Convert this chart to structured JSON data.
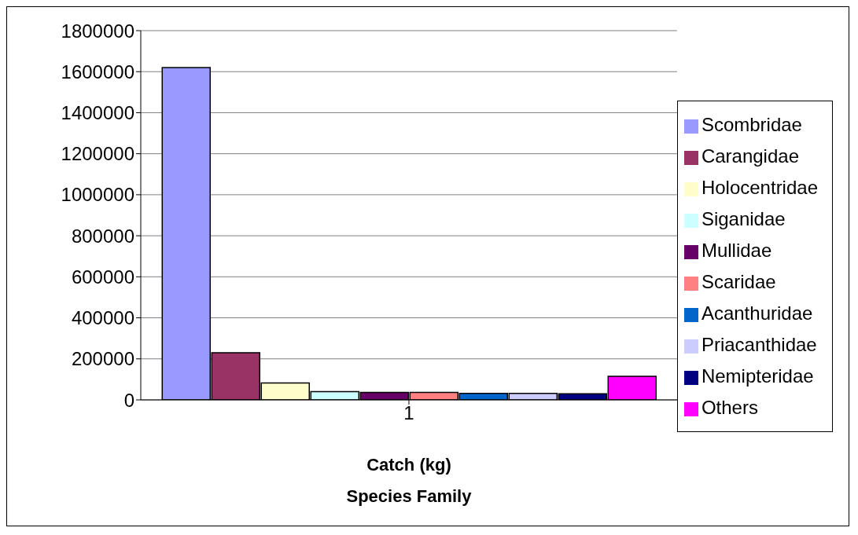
{
  "chart_data": {
    "type": "bar",
    "categories": [
      "1"
    ],
    "xlabel": "Catch (kg)\nSpecies Family",
    "series": [
      {
        "name": "Scombridae",
        "color": "#9999ff",
        "values": [
          1620000
        ]
      },
      {
        "name": "Carangidae",
        "color": "#993366",
        "values": [
          230000
        ]
      },
      {
        "name": "Holocentridae",
        "color": "#ffffcc",
        "values": [
          82000
        ]
      },
      {
        "name": "Siganidae",
        "color": "#ccffff",
        "values": [
          40000
        ]
      },
      {
        "name": "Mullidae",
        "color": "#660066",
        "values": [
          36000
        ]
      },
      {
        "name": "Scaridae",
        "color": "#ff8080",
        "values": [
          36000
        ]
      },
      {
        "name": "Acanthuridae",
        "color": "#0066cc",
        "values": [
          32000
        ]
      },
      {
        "name": "Priacanthidae",
        "color": "#ccccff",
        "values": [
          32000
        ]
      },
      {
        "name": "Nemipteridae",
        "color": "#000080",
        "values": [
          30000
        ]
      },
      {
        "name": "Others",
        "color": "#ff00ff",
        "values": [
          115000
        ]
      }
    ],
    "ylim": [
      0,
      1800000
    ],
    "yticks": [
      0,
      200000,
      400000,
      600000,
      800000,
      1000000,
      1200000,
      1400000,
      1600000,
      1800000
    ],
    "grid": "y",
    "legend": "right"
  }
}
